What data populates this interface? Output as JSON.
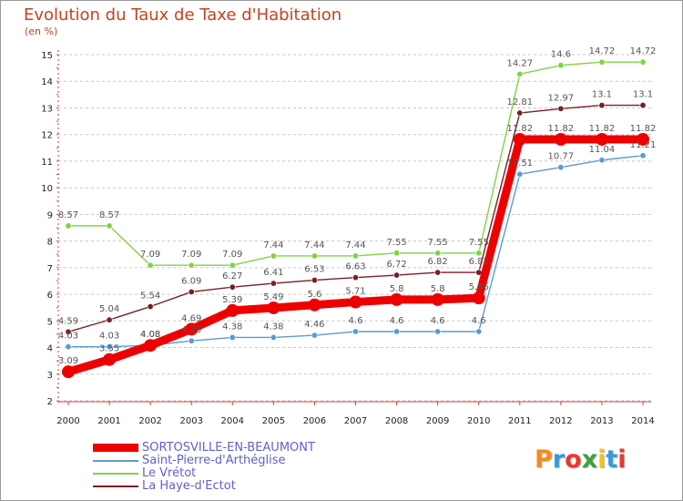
{
  "title": "Evolution du Taux de Taxe d'Habitation",
  "unit_label": "(en %)",
  "logo_text": "Proxiti",
  "logo_colors": [
    "#f08c1c",
    "#3a9ad9",
    "#e83a2c",
    "#3aa33a",
    "#f0c419",
    "#3a9ad9",
    "#e83a2c"
  ],
  "chart_data": {
    "type": "line",
    "x": [
      "2000",
      "2001",
      "2002",
      "2003",
      "2004",
      "2005",
      "2006",
      "2007",
      "2008",
      "2009",
      "2010",
      "2011",
      "2012",
      "2013",
      "2014"
    ],
    "ylim": [
      2,
      15
    ],
    "yticks": [
      2,
      3,
      4,
      5,
      6,
      7,
      8,
      9,
      10,
      11,
      12,
      13,
      14,
      15
    ],
    "grid": "horizontal dashed",
    "legend_position": "bottom-left",
    "series": [
      {
        "name": "Le Vrétot",
        "color": "#7fd444",
        "values": [
          8.57,
          8.57,
          7.09,
          7.09,
          7.09,
          7.44,
          7.44,
          7.44,
          7.55,
          7.55,
          7.55,
          14.27,
          14.6,
          14.72,
          14.72
        ],
        "labels": [
          "8.57",
          "8.57",
          "7.09",
          "7.09",
          "7.09",
          "7.44",
          "7.44",
          "7.44",
          "7.55",
          "7.55",
          "7.55",
          "14.27",
          "14.6",
          "14.72",
          "14.72"
        ]
      },
      {
        "name": "La Haye-d'Ectot",
        "color": "#7a1f24",
        "values": [
          4.59,
          5.04,
          5.54,
          6.09,
          6.27,
          6.41,
          6.53,
          6.63,
          6.72,
          6.82,
          6.82,
          12.81,
          12.97,
          13.1,
          13.1
        ],
        "labels": [
          "4.59",
          "5.04",
          "5.54",
          "6.09",
          "6.27",
          "6.41",
          "6.53",
          "6.63",
          "6.72",
          "6.82",
          "6.82",
          "12.81",
          "12.97",
          "13.1",
          "13.1"
        ]
      },
      {
        "name": "Saint-Pierre-d'Arthéglise",
        "color": "#5b9bd0",
        "values": [
          4.03,
          4.03,
          4.08,
          4.25,
          4.38,
          4.38,
          4.46,
          4.6,
          4.6,
          4.6,
          4.6,
          10.51,
          10.77,
          11.04,
          11.21
        ],
        "labels": [
          "4.03",
          "4.03",
          "4.08",
          "4.25",
          "4.38",
          "4.38",
          "4.46",
          "4.6",
          "4.6",
          "4.6",
          "4.6",
          "10.51",
          "10.77",
          "11.04",
          "11.21"
        ]
      },
      {
        "name": "SORTOSVILLE-EN-BEAUMONT",
        "color": "#ee0000",
        "values": [
          3.09,
          3.55,
          4.08,
          4.69,
          5.39,
          5.49,
          5.6,
          5.71,
          5.8,
          5.8,
          5.86,
          11.82,
          11.82,
          11.82,
          11.82
        ],
        "labels": [
          "3.09",
          "3.55",
          "4.08",
          "4.69",
          "5.39",
          "5.49",
          "5.6",
          "5.71",
          "5.8",
          "5.8",
          "5.86",
          "11.82",
          "11.82",
          "11.82",
          "11.82"
        ]
      }
    ],
    "legend": [
      {
        "name": "SORTOSVILLE-EN-BEAUMONT",
        "color": "#ee0000"
      },
      {
        "name": "Saint-Pierre-d'Arthéglise",
        "color": "#5b9bd0"
      },
      {
        "name": "Le Vrétot",
        "color": "#7fd444"
      },
      {
        "name": "La Haye-d'Ectot",
        "color": "#7a1f24"
      }
    ]
  }
}
